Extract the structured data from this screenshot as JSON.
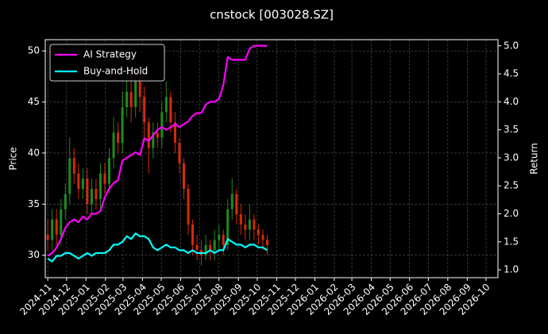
{
  "chart_data": {
    "type": "candlestick",
    "title": "cnstock [003028.SZ]",
    "ylabel": "Price",
    "y2label": "Return",
    "x": [
      "2024-11-01",
      "2024-11-08",
      "2024-11-15",
      "2024-11-22",
      "2024-11-29",
      "2024-12-06",
      "2024-12-13",
      "2024-12-20",
      "2024-12-27",
      "2025-01-03",
      "2025-01-10",
      "2025-01-17",
      "2025-01-24",
      "2025-01-31",
      "2025-02-07",
      "2025-02-14",
      "2025-02-21",
      "2025-02-28",
      "2025-03-07",
      "2025-03-14",
      "2025-03-21",
      "2025-03-28",
      "2025-04-04",
      "2025-04-11",
      "2025-04-18",
      "2025-04-25",
      "2025-05-02",
      "2025-05-09",
      "2025-05-16",
      "2025-05-23",
      "2025-05-30",
      "2025-06-06",
      "2025-06-13",
      "2025-06-20",
      "2025-06-27",
      "2025-07-04",
      "2025-07-11",
      "2025-07-18",
      "2025-07-25",
      "2025-08-01",
      "2025-08-08",
      "2025-08-15",
      "2025-08-22",
      "2025-08-29",
      "2025-09-05",
      "2025-09-12",
      "2025-09-19",
      "2025-09-26",
      "2025-10-03",
      "2025-10-10",
      "2025-10-17"
    ],
    "open": [
      32,
      31.5,
      33.5,
      32,
      34.5,
      36,
      39.5,
      38,
      36.5,
      37.5,
      35,
      36.5,
      35.5,
      38,
      37,
      39.5,
      42,
      41,
      44.5,
      46,
      44.5,
      47,
      45.5,
      43,
      40.5,
      42,
      41.5,
      44,
      45.5,
      43,
      41,
      39,
      36.5,
      33,
      31,
      30.5,
      30,
      31,
      30.5,
      31.5,
      32,
      31,
      34.5,
      36,
      34,
      33,
      32.5,
      33.5,
      32.5,
      32,
      31.5
    ],
    "high": [
      33.5,
      34.5,
      34.5,
      35.5,
      37,
      41.5,
      40.5,
      39,
      38.5,
      38.5,
      37.5,
      37.5,
      39,
      39,
      40.5,
      43.5,
      43,
      46,
      48.5,
      47.5,
      49,
      48,
      46.5,
      43.5,
      43,
      43,
      45,
      47,
      46,
      44,
      41.5,
      39.5,
      37,
      33.5,
      32,
      31.5,
      32,
      31.5,
      32.5,
      33,
      32.5,
      35.5,
      37.5,
      36.5,
      35,
      34,
      35,
      34,
      33,
      32.5,
      32
    ],
    "low": [
      30.5,
      30.5,
      31,
      31,
      33.5,
      35,
      37,
      35.5,
      35.5,
      34,
      34,
      34.5,
      34.5,
      36,
      36,
      38.5,
      40,
      40,
      43.5,
      43,
      43.5,
      44,
      41.5,
      38,
      39.5,
      40.5,
      40.5,
      43,
      42,
      40,
      38,
      35.5,
      32,
      30,
      29.5,
      29,
      29.5,
      29.5,
      29.5,
      30.5,
      30,
      30.5,
      33.5,
      33,
      32,
      31.5,
      31.5,
      31.5,
      31,
      30.5,
      30
    ],
    "close": [
      31.5,
      33.5,
      32,
      34.5,
      36,
      39.5,
      38,
      36.5,
      37.5,
      35,
      36.5,
      35.5,
      38,
      37,
      39.5,
      42,
      41,
      44.5,
      46,
      44.5,
      47,
      45.5,
      43,
      40.5,
      42,
      41.5,
      44,
      45.5,
      43,
      41,
      39,
      36.5,
      33,
      31,
      30.5,
      30,
      31,
      30.5,
      31.5,
      32,
      31,
      34.5,
      36,
      34,
      33,
      32.5,
      33.5,
      32.5,
      32,
      31.5,
      31
    ],
    "up_color": "#1f8a1f",
    "down_color": "#d42a0a",
    "series": [
      {
        "name": "AI Strategy",
        "color": "#ff00ff",
        "axis": "y2",
        "values": [
          1.25,
          1.3,
          1.4,
          1.55,
          1.75,
          1.85,
          1.9,
          1.85,
          1.95,
          1.9,
          2.0,
          2.0,
          2.05,
          2.3,
          2.45,
          2.55,
          2.6,
          2.95,
          3.0,
          3.05,
          3.1,
          3.05,
          3.35,
          3.3,
          3.4,
          3.5,
          3.55,
          3.5,
          3.55,
          3.6,
          3.55,
          3.6,
          3.65,
          3.75,
          3.8,
          3.8,
          3.95,
          4.0,
          4.0,
          4.05,
          4.3,
          4.8,
          4.75,
          4.75,
          4.75,
          4.75,
          4.95,
          5.0,
          5.0,
          5.0,
          5.0
        ]
      },
      {
        "name": "Buy-and-Hold",
        "color": "#00ffff",
        "axis": "y2",
        "values": [
          1.2,
          1.15,
          1.25,
          1.25,
          1.3,
          1.3,
          1.25,
          1.2,
          1.25,
          1.3,
          1.25,
          1.3,
          1.3,
          1.3,
          1.35,
          1.45,
          1.45,
          1.5,
          1.6,
          1.55,
          1.65,
          1.6,
          1.6,
          1.55,
          1.4,
          1.35,
          1.4,
          1.45,
          1.4,
          1.4,
          1.35,
          1.35,
          1.3,
          1.35,
          1.3,
          1.3,
          1.3,
          1.35,
          1.3,
          1.35,
          1.35,
          1.55,
          1.5,
          1.45,
          1.45,
          1.4,
          1.45,
          1.45,
          1.4,
          1.4,
          1.35
        ]
      }
    ],
    "xlim": [
      "2024-10-28",
      "2026-10-20"
    ],
    "xticks": [
      "2024-11",
      "2024-12",
      "2025-01",
      "2025-02",
      "2025-03",
      "2025-04",
      "2025-05",
      "2025-06",
      "2025-07",
      "2025-08",
      "2025-09",
      "2025-10",
      "2025-11",
      "2025-12",
      "2026-01",
      "2026-02",
      "2026-03",
      "2026-04",
      "2026-05",
      "2026-06",
      "2026-07",
      "2026-08",
      "2026-09",
      "2026-10"
    ],
    "ylim": [
      27.8,
      51.1
    ],
    "yticks": [
      30,
      35,
      40,
      45,
      50
    ],
    "y2lim": [
      0.86,
      5.11
    ],
    "y2ticks": [
      {
        "value": 1,
        "label": "1.0"
      },
      1.5,
      {
        "value": 2,
        "label": "2.0"
      },
      2.5,
      {
        "value": 3,
        "label": "3.0"
      },
      3.5,
      {
        "value": 4,
        "label": "4.0"
      },
      4.5,
      {
        "value": 5,
        "label": "5.0"
      }
    ],
    "grid": true,
    "legend": "upper left"
  }
}
